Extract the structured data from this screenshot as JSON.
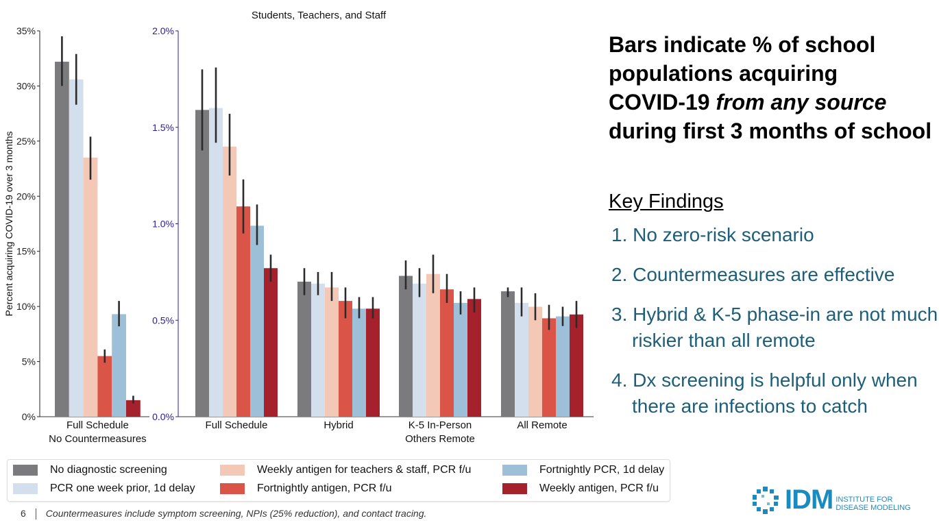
{
  "chart_data": [
    {
      "type": "bar",
      "title": "",
      "xlabel": "",
      "ylabel": "Percent acquiring COVID-19 over 3 months",
      "ylim": [
        0,
        35
      ],
      "yticks": [
        "0%",
        "5%",
        "10%",
        "15%",
        "20%",
        "25%",
        "30%",
        "35%"
      ],
      "tick_values": [
        0,
        5,
        10,
        15,
        20,
        25,
        30,
        35
      ],
      "categories": [
        "Full Schedule\nNo Countermeasures"
      ],
      "series": [
        {
          "name": "No diagnostic screening",
          "values": [
            32.2
          ],
          "err_low": [
            30.0
          ],
          "err_high": [
            34.5
          ]
        },
        {
          "name": "PCR one week prior, 1d delay",
          "values": [
            30.6
          ],
          "err_low": [
            28.3
          ],
          "err_high": [
            32.9
          ]
        },
        {
          "name": "Weekly antigen for teachers & staff, PCR f/u",
          "values": [
            23.5
          ],
          "err_low": [
            21.5
          ],
          "err_high": [
            25.4
          ]
        },
        {
          "name": "Fortnightly antigen, PCR f/u",
          "values": [
            5.5
          ],
          "err_low": [
            4.9
          ],
          "err_high": [
            6.1
          ]
        },
        {
          "name": "Fortnightly PCR, 1d delay",
          "values": [
            9.3
          ],
          "err_low": [
            8.2
          ],
          "err_high": [
            10.5
          ]
        },
        {
          "name": "Weekly antigen, PCR f/u",
          "values": [
            1.5
          ],
          "err_low": [
            1.2
          ],
          "err_high": [
            1.9
          ]
        }
      ]
    },
    {
      "type": "bar",
      "title": "Students, Teachers, and Staff",
      "xlabel": "",
      "ylabel": "",
      "ylim": [
        0,
        2.0
      ],
      "yticks": [
        "0.0%",
        "0.5%",
        "1.0%",
        "1.5%",
        "2.0%"
      ],
      "tick_values": [
        0,
        0.5,
        1.0,
        1.5,
        2.0
      ],
      "categories": [
        "Full Schedule",
        "Hybrid",
        "K-5 In-Person\nOthers Remote",
        "All Remote"
      ],
      "series": [
        {
          "name": "No diagnostic screening",
          "values": [
            1.59,
            0.7,
            0.73,
            0.65
          ],
          "err_low": [
            1.38,
            0.63,
            0.66,
            0.62
          ],
          "err_high": [
            1.8,
            0.77,
            0.81,
            0.67
          ]
        },
        {
          "name": "PCR one week prior, 1d delay",
          "values": [
            1.6,
            0.69,
            0.69,
            0.59
          ],
          "err_low": [
            1.42,
            0.63,
            0.62,
            0.52
          ],
          "err_high": [
            1.81,
            0.75,
            0.77,
            0.67
          ]
        },
        {
          "name": "Weekly antigen for teachers & staff, PCR f/u",
          "values": [
            1.4,
            0.67,
            0.74,
            0.57
          ],
          "err_low": [
            1.25,
            0.6,
            0.64,
            0.5
          ],
          "err_high": [
            1.57,
            0.75,
            0.84,
            0.64
          ]
        },
        {
          "name": "Fortnightly antigen, PCR f/u",
          "values": [
            1.09,
            0.6,
            0.66,
            0.51
          ],
          "err_low": [
            0.95,
            0.51,
            0.59,
            0.45
          ],
          "err_high": [
            1.23,
            0.67,
            0.74,
            0.58
          ]
        },
        {
          "name": "Fortnightly PCR, 1d delay",
          "values": [
            0.99,
            0.56,
            0.59,
            0.52
          ],
          "err_low": [
            0.89,
            0.51,
            0.53,
            0.47
          ],
          "err_high": [
            1.1,
            0.62,
            0.65,
            0.57
          ]
        },
        {
          "name": "Weekly antigen, PCR f/u",
          "values": [
            0.77,
            0.56,
            0.61,
            0.53
          ],
          "err_low": [
            0.7,
            0.51,
            0.54,
            0.46
          ],
          "err_high": [
            0.84,
            0.62,
            0.67,
            0.6
          ]
        }
      ]
    }
  ],
  "series_colors": [
    "#7b7a7c",
    "#d4dfed",
    "#f3c8b7",
    "#da5448",
    "#9dc0d8",
    "#a5222d"
  ],
  "right_axis_color": "#2a1aa0",
  "headline": {
    "line1": "Bars indicate % of school",
    "line2": "populations acquiring",
    "line3a": "COVID-19 ",
    "line3b": "from any source",
    "line4": "during first 3 months of school"
  },
  "key_findings": {
    "title": "Key Findings",
    "items": [
      "1. No zero-risk scenario",
      "2. Countermeasures are effective",
      "3. Hybrid & K-5 phase-in are not much riskier than all remote",
      "4. Dx screening is helpful only when there are infections to catch"
    ]
  },
  "legend": [
    "No diagnostic screening",
    "PCR one week prior, 1d delay",
    "Weekly antigen for teachers & staff, PCR f/u",
    "Fortnightly antigen, PCR f/u",
    "Fortnightly PCR, 1d delay",
    "Weekly antigen, PCR f/u"
  ],
  "footer": {
    "page": "6",
    "note": "Countermeasures include symptom screening, NPIs (25% reduction), and contact tracing."
  },
  "logo": {
    "name": "IDM",
    "sub1": "INSTITUTE FOR",
    "sub2": "DISEASE MODELING"
  }
}
